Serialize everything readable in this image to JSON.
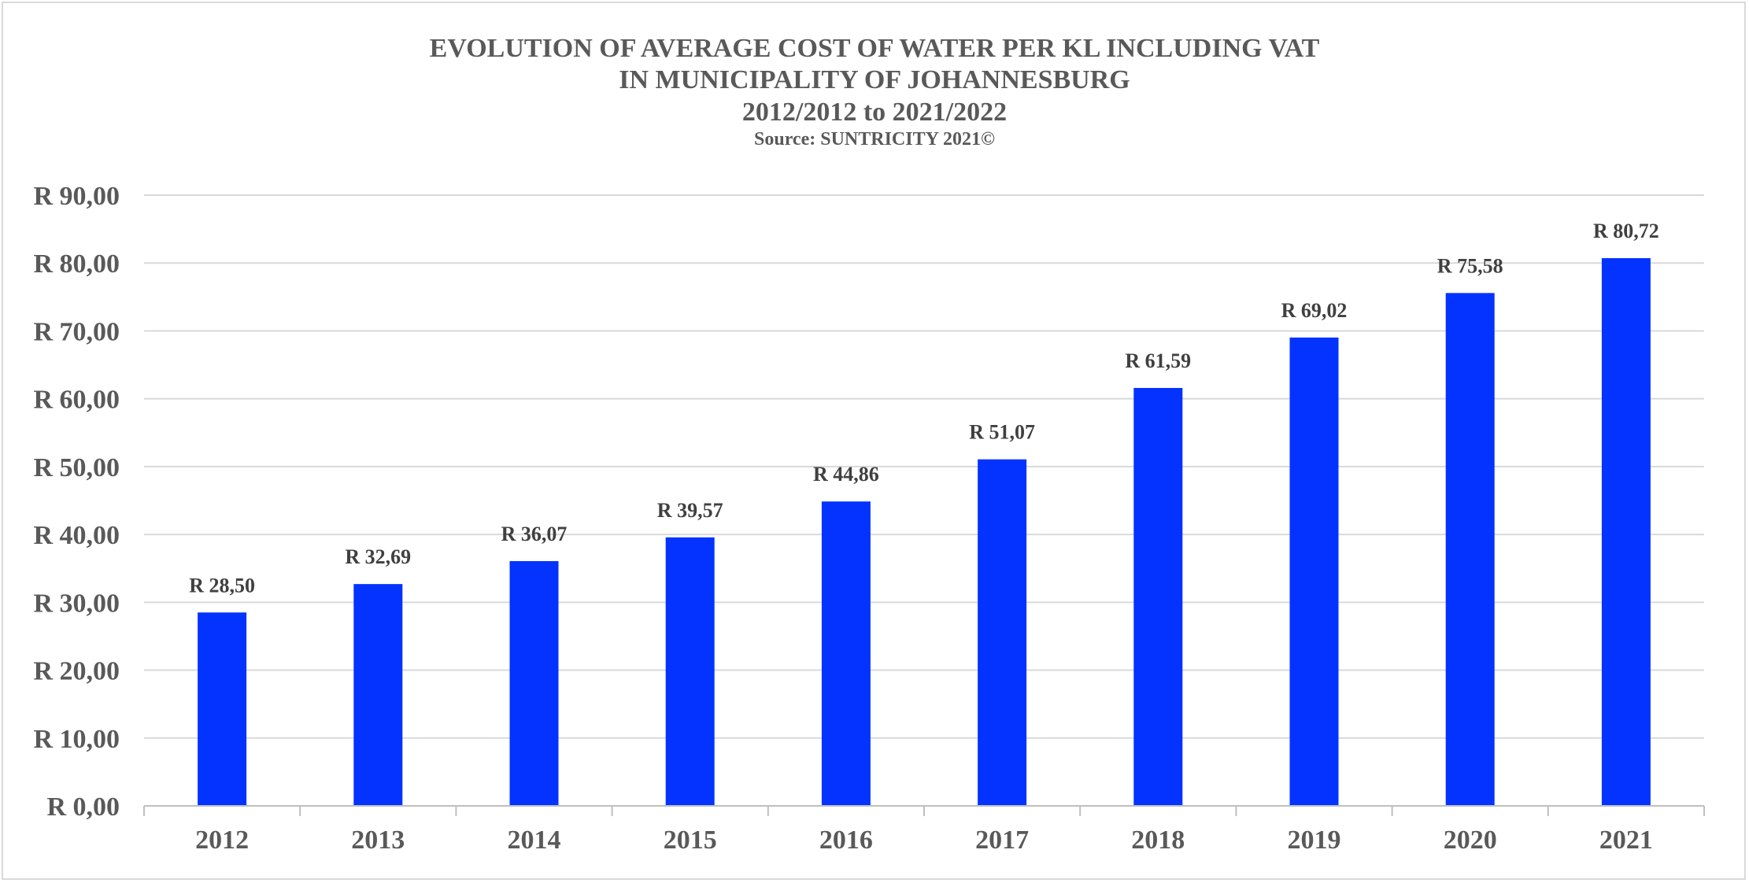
{
  "chart_data": {
    "type": "bar",
    "title_lines": [
      "EVOLUTION OF AVERAGE COST OF WATER PER KL INCLUDING VAT",
      "IN MUNICIPALITY OF JOHANNESBURG",
      "2012/2012 to 2021/2022"
    ],
    "subtitle": "Source: SUNTRICITY 2021©",
    "categories": [
      "2012",
      "2013",
      "2014",
      "2015",
      "2016",
      "2017",
      "2018",
      "2019",
      "2020",
      "2021"
    ],
    "values": [
      28.5,
      32.69,
      36.07,
      39.57,
      44.86,
      51.07,
      61.59,
      69.02,
      75.58,
      80.72
    ],
    "data_labels": [
      "R 28,50",
      "R 32,69",
      "R 36,07",
      "R 39,57",
      "R 44,86",
      "R 51,07",
      "R 61,59",
      "R 69,02",
      "R 75,58",
      "R 80,72"
    ],
    "y_ticks": [
      0,
      10,
      20,
      30,
      40,
      50,
      60,
      70,
      80,
      90
    ],
    "y_tick_labels": [
      "R 0,00",
      "R 10,00",
      "R 20,00",
      "R 30,00",
      "R 40,00",
      "R 50,00",
      "R 60,00",
      "R 70,00",
      "R 80,00",
      "R 90,00"
    ],
    "ylim": [
      0,
      90
    ],
    "xlabel": "",
    "ylabel": "",
    "grid": true,
    "legend": "none",
    "colors": {
      "bar": "#0433FF",
      "grid": "#D9D9D9",
      "axis": "#BFBFBF",
      "frame": "#D9D9D9",
      "text": "#595959",
      "label": "#404040"
    }
  }
}
